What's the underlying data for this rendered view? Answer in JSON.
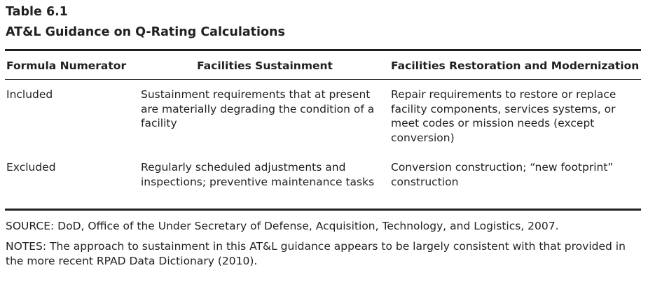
{
  "table": {
    "number": "Table 6.1",
    "title": "AT&L Guidance on Q-Rating Calculations",
    "columns": [
      "Formula Numerator",
      "Facilities Sustainment",
      "Facilities Restoration and Modernization"
    ],
    "rows": [
      {
        "label": "Included",
        "sustainment": "Sustainment requirements that at present are materially degrading the condition of a facility",
        "restoration": "Repair requirements to restore or replace facility components, services systems, or meet codes or mission needs (except conversion)"
      },
      {
        "label": "Excluded",
        "sustainment": "Regularly scheduled adjustments and inspections; preventive maintenance tasks",
        "restoration": "Conversion construction; “new footprint” construction"
      }
    ]
  },
  "source": "SOURCE: DoD, Office of the Under Secretary of Defense, Acquisition, Technology, and Logistics, 2007.",
  "notes": "NOTES: The approach to sustainment in this AT&L guidance appears to be largely consistent with that provided in the more recent RPAD Data Dictionary (2010)."
}
